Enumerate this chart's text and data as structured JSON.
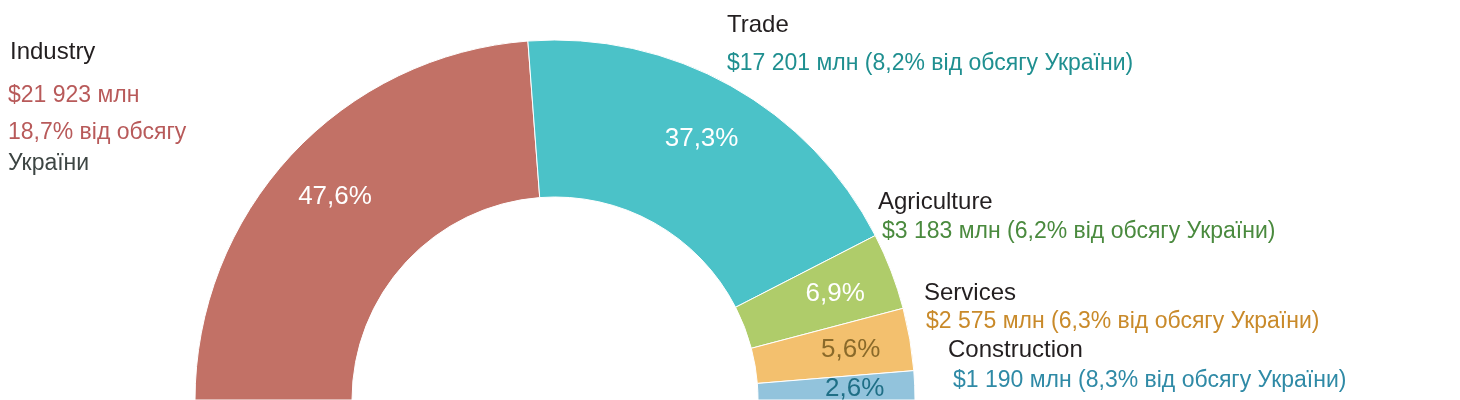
{
  "chart_data": {
    "type": "donut",
    "categories": [
      "Industry",
      "Trade",
      "Agriculture",
      "Services",
      "Construction"
    ],
    "values": [
      47.6,
      37.3,
      6.9,
      5.6,
      2.6
    ],
    "colors": [
      "#c27166",
      "#4bc2c8",
      "#afcc6a",
      "#f3c06e",
      "#92c3dc"
    ],
    "value_labels": [
      "47,6%",
      "37,3%",
      "6,9%",
      "5,6%",
      "2,6%"
    ],
    "annotations": [
      "$21 923 млн",
      "18,7% від обсягу",
      "України",
      "$17 201 млн (8,2% від обсягу України)",
      "$3 183 млн (6,2% від обсягу України)",
      "$2 575 млн (6,3% від обсягу України)",
      "$1 190 млн (8,3% від обсягу України)"
    ]
  }
}
